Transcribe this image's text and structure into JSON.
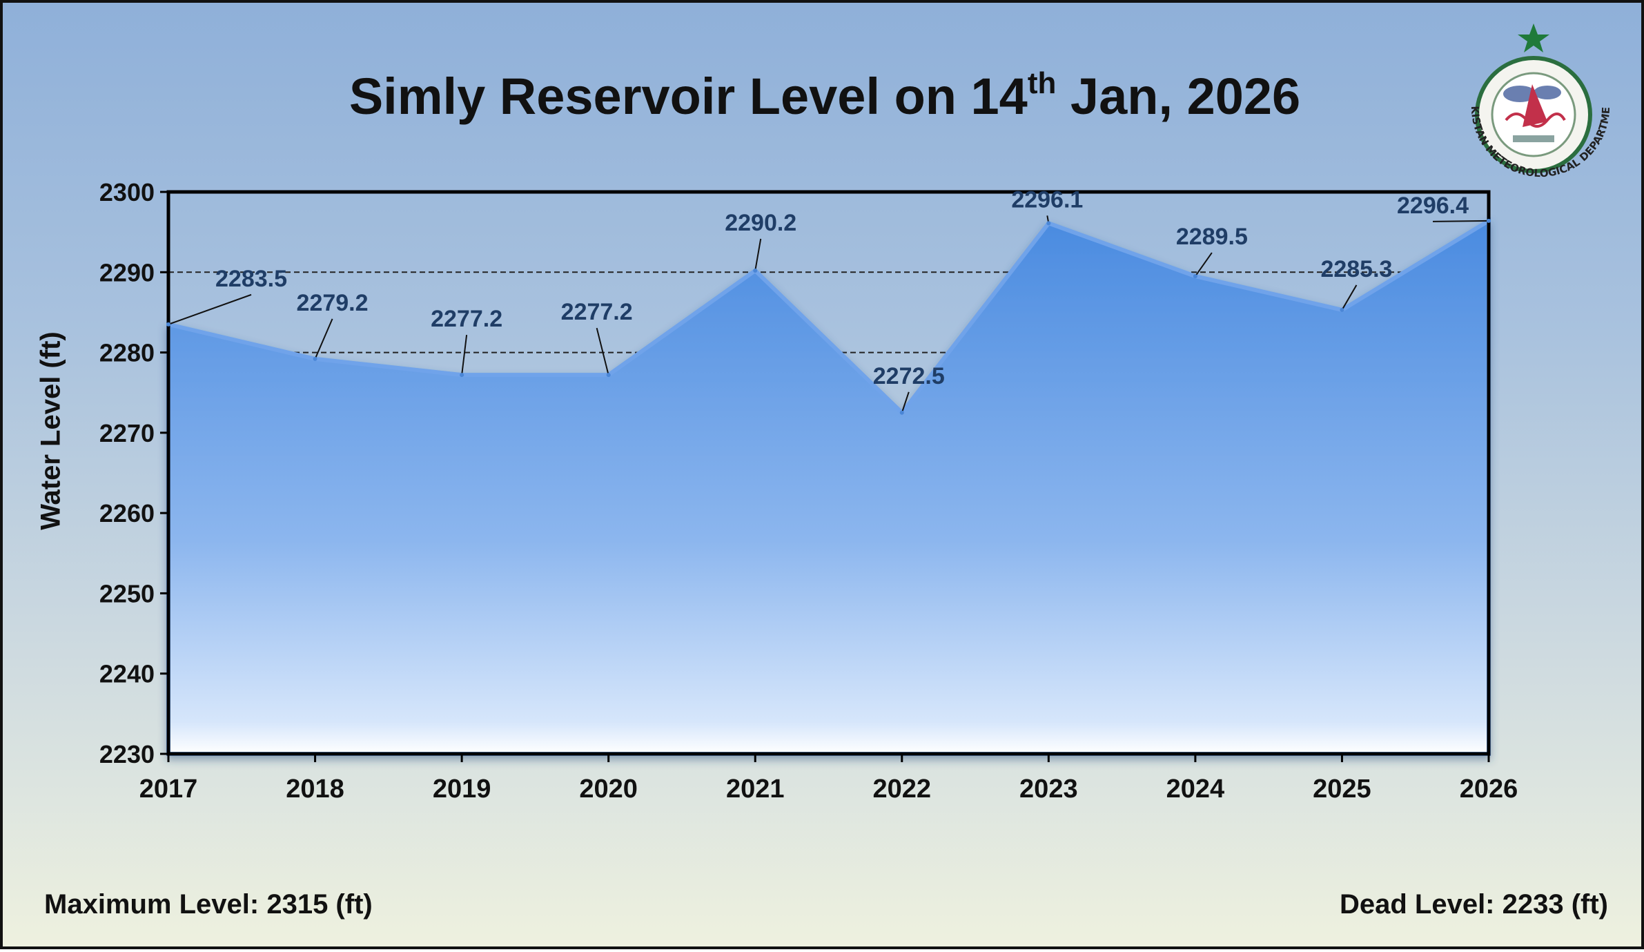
{
  "title": {
    "main": "Simly Reservoir Level on 14",
    "sup": "th",
    "tail": " Jan, 2026"
  },
  "logo": {
    "text": "PAKISTAN METEOROLOGICAL DEPARTMENT"
  },
  "footer": {
    "max_level": "Maximum Level: 2315 (ft)",
    "dead_level": "Dead Level: 2233 (ft)"
  },
  "colors": {
    "area_top": "#4f8fde",
    "area_bottom": "#e6f0fc",
    "label": "#1f3d66",
    "axis": "#000000"
  },
  "chart_data": {
    "type": "area",
    "title": "Simly Reservoir Level on 14th Jan, 2026",
    "xlabel": "",
    "ylabel": "Water Level (ft)",
    "ylim": [
      2230,
      2300
    ],
    "yticks": [
      2230,
      2240,
      2250,
      2260,
      2270,
      2280,
      2290,
      2300
    ],
    "categories": [
      "2017",
      "2018",
      "2019",
      "2020",
      "2021",
      "2022",
      "2023",
      "2024",
      "2025",
      "2026"
    ],
    "values": [
      2283.5,
      2279.2,
      2277.2,
      2277.2,
      2290.2,
      2272.5,
      2296.1,
      2289.5,
      2285.3,
      2296.4
    ],
    "value_labels": [
      "2283.5",
      "2279.2",
      "2277.2",
      "2277.2",
      "2290.2",
      "2272.5",
      "2296.1",
      "2289.5",
      "2285.3",
      "2296.4"
    ],
    "reference_lines": [
      2290,
      2280
    ],
    "grid": false,
    "legend": "none"
  }
}
